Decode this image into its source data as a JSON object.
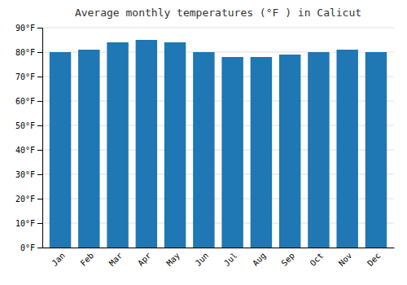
{
  "chart_data": {
    "type": "bar",
    "title": "Average monthly temperatures (°F ) in Calicut",
    "categories": [
      "Jan",
      "Feb",
      "Mar",
      "Apr",
      "May",
      "Jun",
      "Jul",
      "Aug",
      "Sep",
      "Oct",
      "Nov",
      "Dec"
    ],
    "values": [
      80,
      81,
      84,
      85,
      84,
      80,
      78,
      78,
      79,
      80,
      81,
      80
    ],
    "ylim": [
      0,
      90
    ],
    "yticks": [
      {
        "value": 0,
        "label": "0°F"
      },
      {
        "value": 10,
        "label": "10°F"
      },
      {
        "value": 20,
        "label": "20°F"
      },
      {
        "value": 30,
        "label": "30°F"
      },
      {
        "value": 40,
        "label": "40°F"
      },
      {
        "value": 50,
        "label": "50°F"
      },
      {
        "value": 60,
        "label": "60°F"
      },
      {
        "value": 70,
        "label": "70°F"
      },
      {
        "value": 80,
        "label": "80°F"
      },
      {
        "value": 90,
        "label": "90°F"
      }
    ],
    "grid": true
  }
}
